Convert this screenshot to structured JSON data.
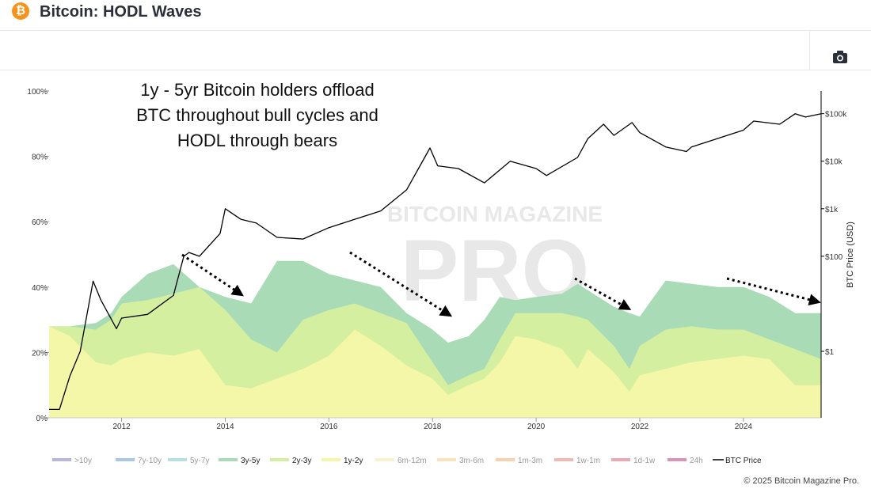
{
  "header": {
    "title": "Bitcoin: HODL Waves",
    "logo_symbol": "₿",
    "logo_color": "#f7931a"
  },
  "toolbar": {
    "screenshot_icon": "camera-icon"
  },
  "watermark": {
    "line1": "BITCOIN MAGAZINE",
    "line2": "PRO"
  },
  "annotation": {
    "lines": [
      "1y - 5yr Bitcoin holders offload",
      "BTC throughout bull cycles and",
      "HODL through bears"
    ]
  },
  "footer": {
    "copyright": "© 2025 Bitcoin Magazine Pro."
  },
  "chart_data": {
    "type": "area",
    "title": "Bitcoin: HODL Waves",
    "x_range": [
      2010.6,
      2025.5
    ],
    "x_ticks": [
      2012,
      2014,
      2016,
      2018,
      2020,
      2022,
      2024
    ],
    "x_tick_labels": [
      "2012",
      "2014",
      "2016",
      "2018",
      "2020",
      "2022",
      "2024"
    ],
    "y_left": {
      "range": [
        0,
        100
      ],
      "ticks": [
        0,
        20,
        40,
        60,
        80,
        100
      ],
      "tick_labels": [
        "0%",
        "20%",
        "40%",
        "60%",
        "80%",
        "100%"
      ]
    },
    "y_right": {
      "label": "BTC Price (USD)",
      "scale": "log",
      "range": [
        0.04,
        300000
      ],
      "ticks": [
        1,
        100,
        1000,
        10000,
        100000
      ],
      "tick_labels": [
        "$1",
        "$100",
        "$1k",
        "$10k",
        "$100k"
      ]
    },
    "grid": false,
    "legend": [
      {
        "name": ">10y",
        "color": "#b7b6dc"
      },
      {
        "name": "7y-10y",
        "color": "#a9c7e6"
      },
      {
        "name": "5y-7y",
        "color": "#b3e1dd"
      },
      {
        "name": "3y-5y",
        "color": "#a8dbb6"
      },
      {
        "name": "2y-3y",
        "color": "#d4ef9f"
      },
      {
        "name": "1y-2y",
        "color": "#f4f6a8"
      },
      {
        "name": "6m-12m",
        "color": "#fbf1cf"
      },
      {
        "name": "3m-6m",
        "color": "#fbe2bd"
      },
      {
        "name": "1m-3m",
        "color": "#f9d0b0"
      },
      {
        "name": "1w-1m",
        "color": "#f4b8b3"
      },
      {
        "name": "1d-1w",
        "color": "#eda9b3"
      },
      {
        "name": "24h",
        "color": "#dc93b5"
      },
      {
        "name": "BTC Price",
        "color": "#000000"
      }
    ],
    "legend_visible_series": [
      "3y-5y",
      "2y-3y",
      "1y-2y",
      "BTC Price"
    ],
    "series": [
      {
        "name": "1y-2y (cumulative top %)",
        "x": [
          2010.6,
          2011,
          2011.5,
          2011.8,
          2012,
          2012.5,
          2013,
          2013.5,
          2014,
          2014.5,
          2015,
          2015.5,
          2016,
          2016.5,
          2017,
          2017.5,
          2018,
          2018.3,
          2018.7,
          2019,
          2019.3,
          2019.6,
          2020,
          2020.5,
          2020.8,
          2021,
          2021.5,
          2021.8,
          2022,
          2022.5,
          2023,
          2023.5,
          2024,
          2024.5,
          2025,
          2025.5
        ],
        "values": [
          28,
          25,
          17,
          16,
          18,
          20,
          19,
          21,
          10,
          9,
          12,
          15,
          19,
          27,
          22,
          16,
          12,
          7,
          10,
          12,
          17,
          25,
          24,
          21,
          15,
          21,
          14,
          8,
          13,
          15,
          17,
          18,
          19,
          18,
          10,
          10
        ]
      },
      {
        "name": "2y-3y (cumulative top %)",
        "x": [
          2010.6,
          2011,
          2011.5,
          2011.8,
          2012,
          2012.5,
          2013,
          2013.5,
          2014,
          2014.5,
          2015,
          2015.5,
          2016,
          2016.5,
          2017,
          2017.5,
          2018,
          2018.3,
          2018.7,
          2019,
          2019.3,
          2019.6,
          2020,
          2020.5,
          2020.8,
          2021,
          2021.5,
          2021.8,
          2022,
          2022.5,
          2023,
          2023.5,
          2024,
          2024.5,
          2025,
          2025.5
        ],
        "values": [
          28,
          28,
          27,
          30,
          35,
          36,
          38,
          40,
          33,
          24,
          20,
          30,
          33,
          35,
          32,
          29,
          17,
          10,
          13,
          15,
          24,
          32,
          32,
          32,
          31,
          30,
          22,
          15,
          22,
          27,
          28,
          27,
          27,
          24,
          21,
          18
        ]
      },
      {
        "name": "3y-5y (cumulative top %)",
        "x": [
          2010.6,
          2011,
          2011.5,
          2011.8,
          2012,
          2012.5,
          2013,
          2013.5,
          2014,
          2014.5,
          2015,
          2015.5,
          2016,
          2016.5,
          2017,
          2017.5,
          2018,
          2018.3,
          2018.7,
          2019,
          2019.3,
          2019.6,
          2020,
          2020.5,
          2020.8,
          2021,
          2021.5,
          2021.8,
          2022,
          2022.5,
          2023,
          2023.5,
          2024,
          2024.5,
          2025,
          2025.5
        ],
        "values": [
          28,
          28,
          29,
          32,
          37,
          44,
          47,
          40,
          37,
          35,
          48,
          48,
          44,
          42,
          40,
          32,
          27,
          23,
          25,
          30,
          37,
          36,
          37,
          38,
          41,
          39,
          34,
          32,
          31,
          42,
          41,
          40,
          40,
          37,
          32,
          32
        ]
      },
      {
        "name": "BTC Price",
        "x": [
          2010.6,
          2010.8,
          2011,
          2011.2,
          2011.45,
          2011.6,
          2011.9,
          2012,
          2012.5,
          2013,
          2013.2,
          2013.3,
          2013.5,
          2013.9,
          2014,
          2014.3,
          2014.6,
          2015,
          2015.5,
          2016,
          2016.5,
          2017,
          2017.5,
          2017.95,
          2018.1,
          2018.5,
          2019,
          2019.5,
          2020,
          2020.2,
          2020.8,
          2021,
          2021.3,
          2021.5,
          2021.85,
          2022,
          2022.5,
          2022.9,
          2023,
          2023.5,
          2024,
          2024.2,
          2024.7,
          2025,
          2025.2,
          2025.5
        ],
        "values": [
          0.06,
          0.06,
          0.3,
          1,
          30,
          12,
          3,
          5,
          6,
          15,
          100,
          120,
          100,
          300,
          1000,
          600,
          500,
          250,
          230,
          400,
          600,
          900,
          2500,
          19000,
          8000,
          7000,
          3500,
          10000,
          7000,
          5000,
          12000,
          30000,
          60000,
          35000,
          65000,
          40000,
          20000,
          16000,
          20000,
          30000,
          45000,
          70000,
          60000,
          100000,
          85000,
          100000
        ]
      }
    ]
  }
}
